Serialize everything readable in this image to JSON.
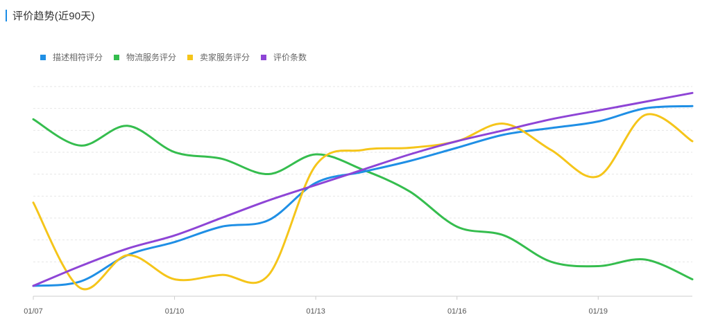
{
  "header": {
    "title": "评价趋势(近90天)",
    "accent_color": "#1a8ce6"
  },
  "chart_data": {
    "type": "line",
    "title": "评价趋势(近90天)",
    "x_tick_labels": [
      "01/07",
      "01/10",
      "01/13",
      "01/16",
      "01/19"
    ],
    "x": [
      "01/07",
      "01/08",
      "01/09",
      "01/10",
      "01/11",
      "01/12",
      "01/13",
      "01/14",
      "01/15",
      "01/16",
      "01/17",
      "01/18",
      "01/19",
      "01/20",
      "01/21"
    ],
    "ylim": [
      0,
      9
    ],
    "grid": true,
    "legend_position": "top-left",
    "series": [
      {
        "name": "描述相符评分",
        "color": "#1f8fe5",
        "values": [
          0.0,
          0.2,
          1.4,
          2.0,
          2.7,
          3.0,
          4.7,
          5.2,
          5.7,
          6.3,
          6.9,
          7.2,
          7.5,
          8.1,
          8.2
        ]
      },
      {
        "name": "物流服务评分",
        "color": "#35bd4e",
        "values": [
          7.6,
          6.4,
          7.3,
          6.1,
          5.8,
          5.1,
          6.0,
          5.3,
          4.3,
          2.7,
          2.3,
          1.1,
          0.9,
          1.2,
          0.3
        ]
      },
      {
        "name": "卖家服务评分",
        "color": "#f5c51a",
        "values": [
          3.8,
          -0.1,
          1.4,
          0.3,
          0.5,
          0.5,
          5.5,
          6.2,
          6.3,
          6.6,
          7.4,
          6.2,
          5.0,
          7.8,
          6.6
        ]
      },
      {
        "name": "评价条数",
        "color": "#8e45d6",
        "values": [
          0.0,
          0.9,
          1.7,
          2.3,
          3.1,
          3.9,
          4.6,
          5.3,
          6.0,
          6.6,
          7.1,
          7.6,
          8.0,
          8.4,
          8.8
        ]
      }
    ]
  }
}
